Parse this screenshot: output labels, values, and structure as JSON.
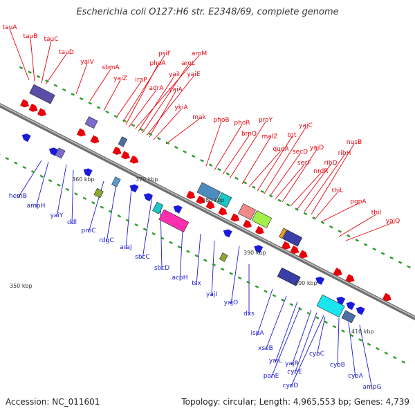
{
  "title": "Escherichia coli O127:H6 str. E2348/69, complete genome",
  "footer": {
    "accession": "Accession: NC_011601",
    "summary": "Topology: circular; Length: 4,965,553 bp; Genes: 4,739"
  },
  "colors": {
    "forward_label": "#e8000b",
    "reverse_label": "#1a1acc",
    "backbone": "#8a8a8a",
    "tick": "#2e9e2e",
    "forward_arrow": "#e8000b",
    "reverse_arrow": "#1a1adb"
  },
  "axis_labels": [
    "350 kbp",
    "360 kbp",
    "370 kbp",
    "380 kbp",
    "390 kbp",
    "400 kbp",
    "410 kbp"
  ],
  "forward_genes": [
    "tauA",
    "tauB",
    "tauC",
    "tauD",
    "yaiV",
    "sbmA",
    "yaiZ",
    "iraP",
    "psiF",
    "phoA",
    "adrA",
    "aroM",
    "yaiI",
    "aroL",
    "yaiE",
    "yaiA",
    "ykiA",
    "mak",
    "phoB",
    "phoR",
    "brnQ",
    "proY",
    "malZ",
    "queA",
    "tgt",
    "yajC",
    "secD",
    "secF",
    "yajD",
    "nrdR",
    "ribD",
    "ribH",
    "nusB",
    "thiL",
    "pgpA",
    "thiI",
    "yajQ"
  ],
  "reverse_genes": [
    "hemB",
    "ampH",
    "yaiY",
    "ddl",
    "proC",
    "rdgC",
    "araJ",
    "sbcC",
    "sbcD",
    "acpH",
    "tsx",
    "yajI",
    "yajO",
    "dxs",
    "ispA",
    "xseB",
    "yajL",
    "panE",
    "yajR",
    "cyoE",
    "cyoD",
    "cyoC",
    "cyoB",
    "cyoA",
    "ampG"
  ]
}
